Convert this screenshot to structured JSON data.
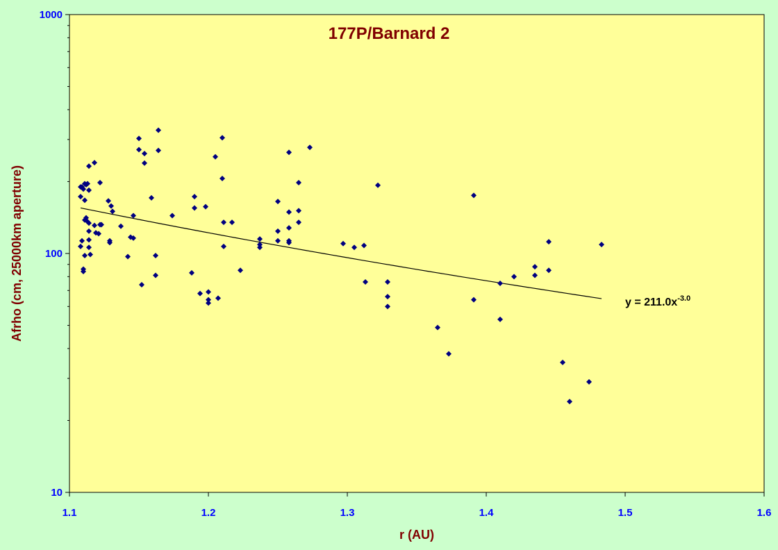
{
  "chart_data": {
    "type": "scatter",
    "title": "177P/Barnard 2",
    "xlabel": "r (AU)",
    "ylabel": "Afrho (cm, 25000km aperture)",
    "xlim": [
      1.1,
      1.6
    ],
    "ylim": [
      10,
      1000
    ],
    "yscale": "log",
    "x_ticks": [
      "1.1",
      "1.2",
      "1.3",
      "1.4",
      "1.5",
      "1.6"
    ],
    "y_ticks": [
      "10",
      "100",
      "1000"
    ],
    "grid": false,
    "colors": {
      "background": "#ccffcc",
      "plot_area": "#ffff99",
      "marker": "#000080",
      "title": "#800000",
      "ticks": "#0000ff",
      "trendline": "#000000"
    },
    "series": [
      {
        "points": [
          [
            1.108,
            173
          ],
          [
            1.108,
            190
          ],
          [
            1.109,
            190
          ],
          [
            1.11,
            186
          ],
          [
            1.111,
            167
          ],
          [
            1.112,
            194
          ],
          [
            1.111,
            196
          ],
          [
            1.111,
            138
          ],
          [
            1.112,
            141
          ],
          [
            1.113,
            136
          ],
          [
            1.108,
            107
          ],
          [
            1.109,
            113
          ],
          [
            1.11,
            86
          ],
          [
            1.11,
            84
          ],
          [
            1.111,
            98
          ],
          [
            1.113,
            196
          ],
          [
            1.114,
            184
          ],
          [
            1.114,
            232
          ],
          [
            1.114,
            134
          ],
          [
            1.114,
            124
          ],
          [
            1.114,
            114
          ],
          [
            1.114,
            106
          ],
          [
            1.115,
            99
          ],
          [
            1.118,
            240
          ],
          [
            1.118,
            131
          ],
          [
            1.119,
            122
          ],
          [
            1.121,
            121
          ],
          [
            1.122,
            198
          ],
          [
            1.122,
            132
          ],
          [
            1.123,
            132
          ],
          [
            1.128,
            166
          ],
          [
            1.129,
            113
          ],
          [
            1.129,
            111
          ],
          [
            1.13,
            158
          ],
          [
            1.131,
            150
          ],
          [
            1.137,
            130
          ],
          [
            1.142,
            97
          ],
          [
            1.144,
            117
          ],
          [
            1.146,
            144
          ],
          [
            1.146,
            116
          ],
          [
            1.15,
            303
          ],
          [
            1.15,
            272
          ],
          [
            1.152,
            74
          ],
          [
            1.154,
            239
          ],
          [
            1.154,
            262
          ],
          [
            1.159,
            171
          ],
          [
            1.162,
            98
          ],
          [
            1.162,
            81
          ],
          [
            1.164,
            328
          ],
          [
            1.164,
            270
          ],
          [
            1.174,
            144
          ],
          [
            1.188,
            83
          ],
          [
            1.19,
            173
          ],
          [
            1.19,
            155
          ],
          [
            1.194,
            68
          ],
          [
            1.198,
            157
          ],
          [
            1.2,
            69
          ],
          [
            1.2,
            64
          ],
          [
            1.2,
            62
          ],
          [
            1.205,
            254
          ],
          [
            1.207,
            65
          ],
          [
            1.21,
            305
          ],
          [
            1.21,
            206
          ],
          [
            1.211,
            135
          ],
          [
            1.211,
            107
          ],
          [
            1.217,
            135
          ],
          [
            1.223,
            85
          ],
          [
            1.237,
            115
          ],
          [
            1.237,
            109
          ],
          [
            1.237,
            106
          ],
          [
            1.25,
            124
          ],
          [
            1.25,
            113
          ],
          [
            1.25,
            165
          ],
          [
            1.258,
            265
          ],
          [
            1.258,
            149
          ],
          [
            1.258,
            128
          ],
          [
            1.258,
            113
          ],
          [
            1.258,
            111
          ],
          [
            1.265,
            198
          ],
          [
            1.265,
            151
          ],
          [
            1.265,
            135
          ],
          [
            1.273,
            278
          ],
          [
            1.297,
            110
          ],
          [
            1.305,
            106
          ],
          [
            1.312,
            108
          ],
          [
            1.313,
            76
          ],
          [
            1.322,
            193
          ],
          [
            1.329,
            76
          ],
          [
            1.329,
            66
          ],
          [
            1.329,
            60
          ],
          [
            1.365,
            49
          ],
          [
            1.373,
            38
          ],
          [
            1.391,
            175
          ],
          [
            1.391,
            64
          ],
          [
            1.41,
            75
          ],
          [
            1.41,
            53
          ],
          [
            1.42,
            80
          ],
          [
            1.435,
            88
          ],
          [
            1.435,
            81
          ],
          [
            1.445,
            112
          ],
          [
            1.445,
            85
          ],
          [
            1.455,
            35
          ],
          [
            1.46,
            24
          ],
          [
            1.474,
            29
          ],
          [
            1.483,
            109
          ]
        ]
      }
    ],
    "trendline": {
      "type": "power",
      "coefficient": 211.0,
      "exponent": -3.0,
      "x_range": [
        1.108,
        1.483
      ]
    },
    "annotation": {
      "prefix": "y = 211.0x",
      "superscript": "-3.0"
    }
  }
}
